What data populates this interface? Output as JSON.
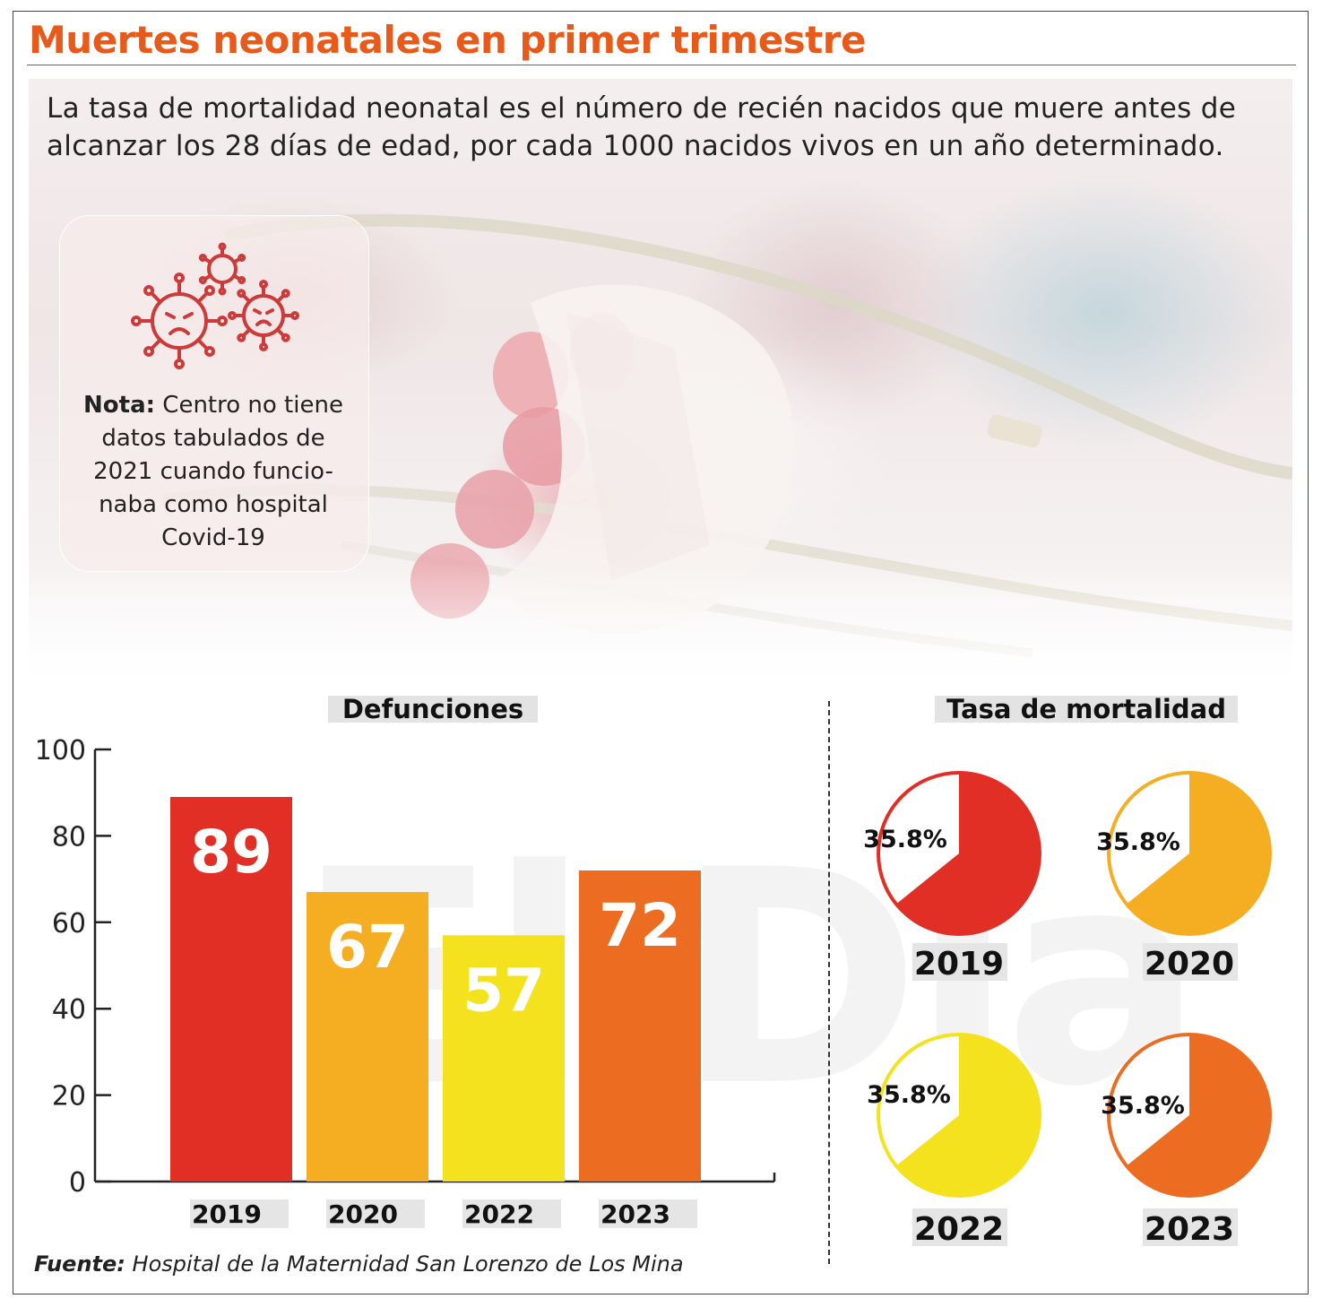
{
  "header": {
    "title": "Muertes neonatales en primer trimestre"
  },
  "intro": {
    "line1": "La tasa de mortalidad neonatal es el número de recién nacidos que muere antes de",
    "line2": "alcanzar los 28 días de edad, por cada 1000 nacidos vivos en un año determinado."
  },
  "note": {
    "label": "Nota:",
    "line1": " Centro no tiene",
    "line2": "datos tabulados de",
    "line3": "2021 cuando funcio-",
    "line4": "naba como hospital",
    "line5": "Covid-19",
    "icon": "virus-icon"
  },
  "watermark": "El Día",
  "footer": {
    "label": "Fuente:",
    "text": " Hospital de la Maternidad San Lorenzo de Los Mina"
  },
  "chart_data": [
    {
      "type": "bar",
      "title": "Defunciones",
      "categories": [
        "2019",
        "2020",
        "2022",
        "2023"
      ],
      "values": [
        89,
        67,
        57,
        72
      ],
      "ylim": [
        0,
        100
      ],
      "yticks": [
        0,
        20,
        40,
        60,
        80,
        100
      ],
      "colors": [
        "#e22f26",
        "#f5ae22",
        "#f4e21f",
        "#ec6d21"
      ],
      "grid": false,
      "legend": "none"
    },
    {
      "type": "pie",
      "title": "Tasa de mortalidad",
      "charts": [
        {
          "year": "2019",
          "label": "35.8%",
          "value": 35.8,
          "color": "#e22f26"
        },
        {
          "year": "2020",
          "label": "35.8%",
          "value": 35.8,
          "color": "#f5ae22"
        },
        {
          "year": "2022",
          "label": "35.8%",
          "value": 35.8,
          "color": "#f4e21f"
        },
        {
          "year": "2023",
          "label": "35.8%",
          "value": 35.8,
          "color": "#ec6d21"
        }
      ]
    }
  ]
}
